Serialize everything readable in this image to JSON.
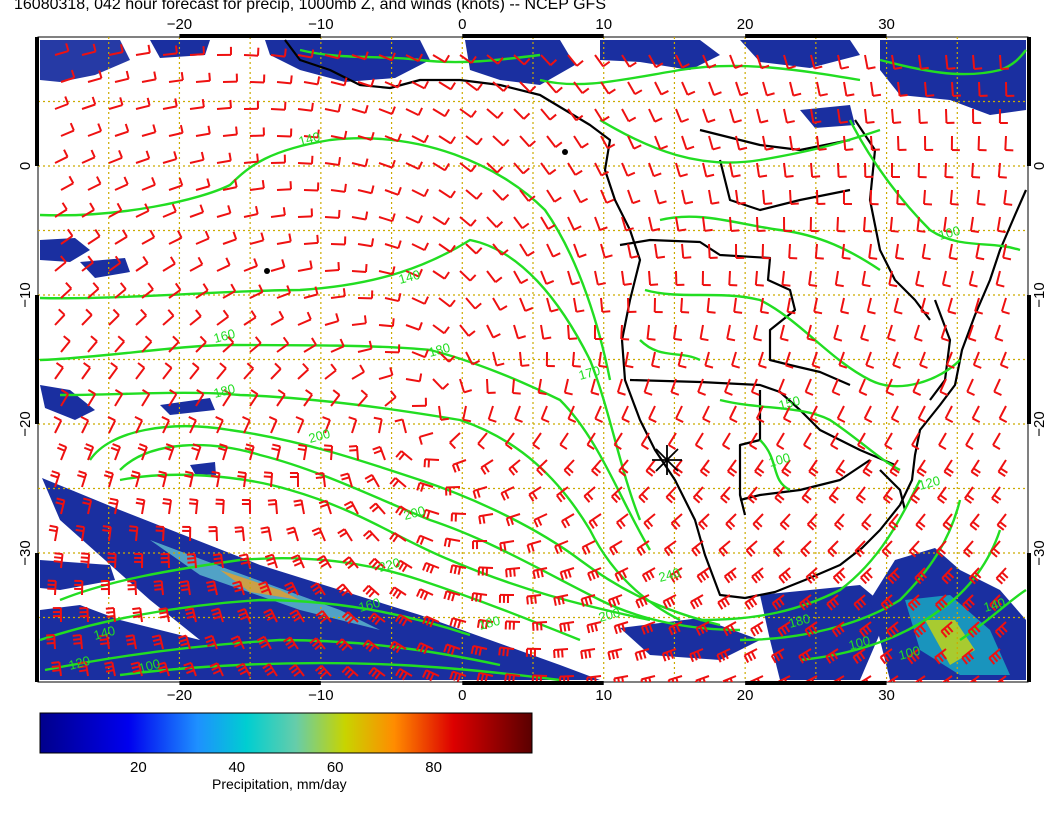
{
  "title": "16080318, 042 hour forecast for precip, 1000mb Z, and winds (knots) -- NCEP GFS",
  "map": {
    "lon_range": [
      -30,
      40
    ],
    "lat_range": [
      -40,
      10
    ],
    "lon_ticks": [
      -20,
      -10,
      0,
      10,
      20,
      30
    ],
    "lat_ticks": [
      0,
      -10,
      -20,
      -30
    ],
    "lon_tick_labels": [
      "−20",
      "−10",
      "0",
      "10",
      "20",
      "30"
    ],
    "lat_tick_labels": [
      "0",
      "−10",
      "−20",
      "−30"
    ],
    "colors": {
      "coast": "#000000",
      "contours": "#22dd22",
      "wind_barbs": "#ee1111",
      "grid": "#ccaa00"
    },
    "contour_labels": [
      "140",
      "140",
      "160",
      "180",
      "170",
      "180",
      "200",
      "200",
      "220",
      "240",
      "200",
      "180",
      "160",
      "140",
      "120",
      "100",
      "150",
      "100",
      "120",
      "140",
      "180",
      "100",
      "100",
      "100"
    ]
  },
  "colorbar": {
    "ticks": [
      "20",
      "40",
      "60",
      "80"
    ],
    "label": "Precipitation, mm/day",
    "range": [
      0,
      100
    ]
  }
}
